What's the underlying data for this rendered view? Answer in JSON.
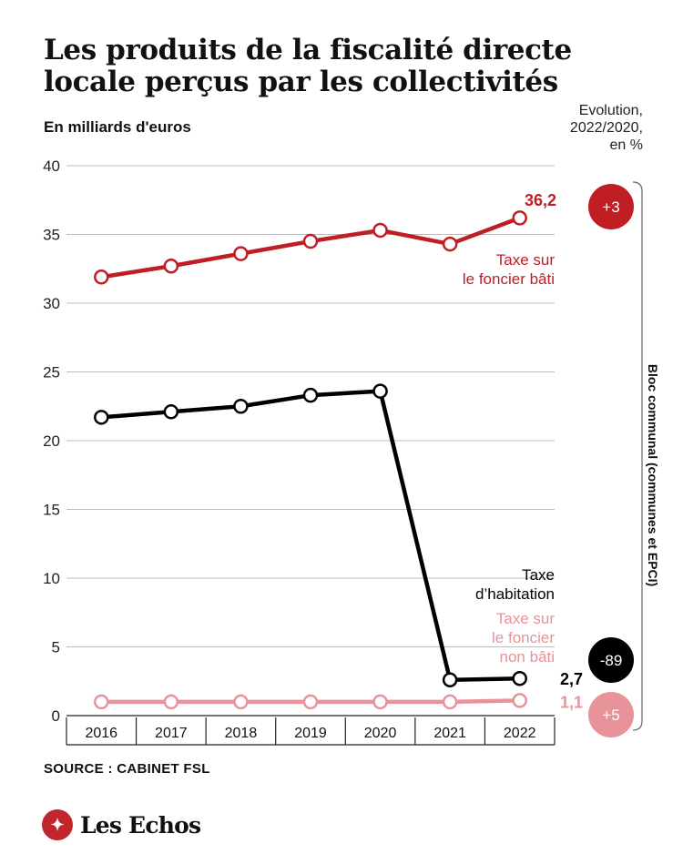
{
  "title": "Les produits de la fiscalité directe locale perçus par les collectivités",
  "subtitle": "En milliards d'euros",
  "evolution_header": [
    "Evolution,",
    "2022/2020,",
    "en %"
  ],
  "group_label": "Bloc communal (communes et EPCI)",
  "source": "SOURCE : CABINET FSL",
  "brand": "Les Echos",
  "brand_mark_glyph": "✦",
  "colors": {
    "foncier_bati": "#bf1e24",
    "habitation": "#000000",
    "non_bati": "#e8939a"
  },
  "chart_data": {
    "type": "line",
    "categories": [
      "2016",
      "2017",
      "2018",
      "2019",
      "2020",
      "2021",
      "2022"
    ],
    "ylim": [
      0,
      40
    ],
    "yticks": [
      "0",
      "5",
      "10",
      "15",
      "20",
      "25",
      "30",
      "35",
      "40"
    ],
    "grid": true,
    "series": [
      {
        "key": "foncier_bati",
        "name": [
          "Taxe sur",
          "le foncier bâti"
        ],
        "values": [
          31.9,
          32.7,
          33.6,
          34.5,
          35.3,
          34.3,
          36.2
        ],
        "end_label": "36,2",
        "evolution": "+3"
      },
      {
        "key": "habitation",
        "name": [
          "Taxe",
          "d’habitation"
        ],
        "values": [
          21.7,
          22.1,
          22.5,
          23.3,
          23.6,
          2.6,
          2.7
        ],
        "end_label": "2,7",
        "evolution": "-89"
      },
      {
        "key": "non_bati",
        "name": [
          "Taxe sur",
          "le foncier",
          "non bâti"
        ],
        "values": [
          1.0,
          1.0,
          1.0,
          1.0,
          1.0,
          1.0,
          1.1
        ],
        "end_label": "1,1",
        "evolution": "+5"
      }
    ]
  }
}
